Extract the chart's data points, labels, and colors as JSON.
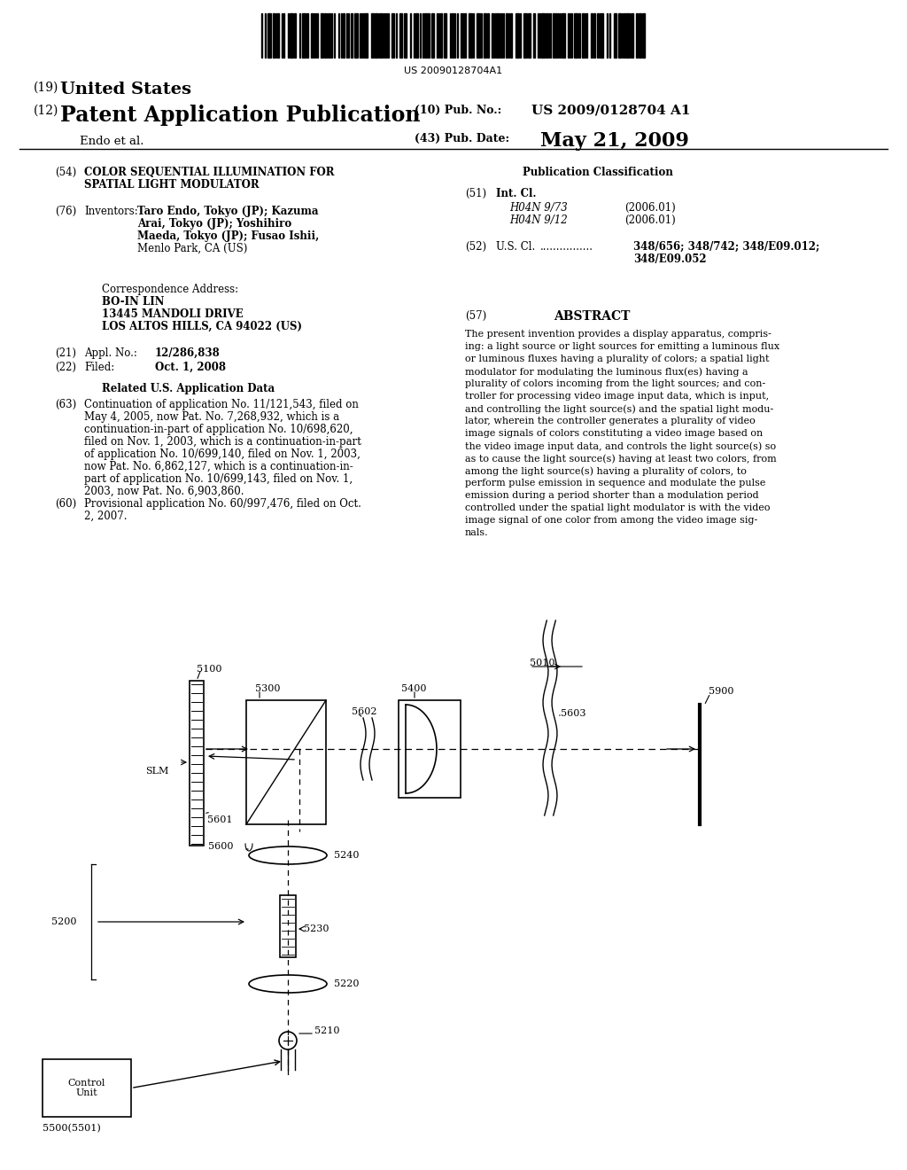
{
  "bg_color": "#ffffff",
  "barcode_text": "US 20090128704A1",
  "title19": "(19)",
  "title19b": "United States",
  "title12": "(12)",
  "title12b": "Patent Application Publication",
  "pub_no_label": "(10) Pub. No.:",
  "pub_no": "US 2009/0128704 A1",
  "inventor_label": "Endo et al.",
  "pub_date_label": "(43) Pub. Date:",
  "pub_date": "May 21, 2009",
  "section54_title_line1": "COLOR SEQUENTIAL ILLUMINATION FOR",
  "section54_title_line2": "SPATIAL LIGHT MODULATOR",
  "section76_label": "Inventors:",
  "section76_line1": "Taro Endo, Tokyo (JP); Kazuma",
  "section76_line2": "Arai, Tokyo (JP); Yoshihiro",
  "section76_line3": "Maeda, Tokyo (JP); Fusao Ishii,",
  "section76_line4": "Menlo Park, CA (US)",
  "corr_addr_label": "Correspondence Address:",
  "corr_line1": "BO-IN LIN",
  "corr_line2": "13445 MANDOLI DRIVE",
  "corr_line3": "LOS ALTOS HILLS, CA 94022 (US)",
  "section21_label": "Appl. No.:",
  "section21_val": "12/286,838",
  "section22_label": "Filed:",
  "section22_val": "Oct. 1, 2008",
  "related_title": "Related U.S. Application Data",
  "section63_lines": [
    "Continuation of application No. 11/121,543, filed on",
    "May 4, 2005, now Pat. No. 7,268,932, which is a",
    "continuation-in-part of application No. 10/698,620,",
    "filed on Nov. 1, 2003, which is a continuation-in-part",
    "of application No. 10/699,140, filed on Nov. 1, 2003,",
    "now Pat. No. 6,862,127, which is a continuation-in-",
    "part of application No. 10/699,143, filed on Nov. 1,",
    "2003, now Pat. No. 6,903,860."
  ],
  "section60_lines": [
    "Provisional application No. 60/997,476, filed on Oct.",
    "2, 2007."
  ],
  "pub_class_title": "Publication Classification",
  "section51_label": "Int. Cl.",
  "section51_val1": "H04N 9/73",
  "section51_year1": "(2006.01)",
  "section51_val2": "H04N 9/12",
  "section51_year2": "(2006.01)",
  "section52_label": "U.S. Cl.",
  "section52_val_line1": "348/656; 348/742; 348/E09.012;",
  "section52_val_line2": "348/E09.052",
  "section57_label": "ABSTRACT",
  "abstract_lines": [
    "The present invention provides a display apparatus, compris-",
    "ing: a light source or light sources for emitting a luminous flux",
    "or luminous fluxes having a plurality of colors; a spatial light",
    "modulator for modulating the luminous flux(es) having a",
    "plurality of colors incoming from the light sources; and con-",
    "troller for processing video image input data, which is input,",
    "and controlling the light source(s) and the spatial light modu-",
    "lator, wherein the controller generates a plurality of video",
    "image signals of colors constituting a video image based on",
    "the video image input data, and controls the light source(s) so",
    "as to cause the light source(s) having at least two colors, from",
    "among the light source(s) having a plurality of colors, to",
    "perform pulse emission in sequence and modulate the pulse",
    "emission during a period shorter than a modulation period",
    "controlled under the spatial light modulator is with the video",
    "image signal of one color from among the video image sig-",
    "nals."
  ]
}
